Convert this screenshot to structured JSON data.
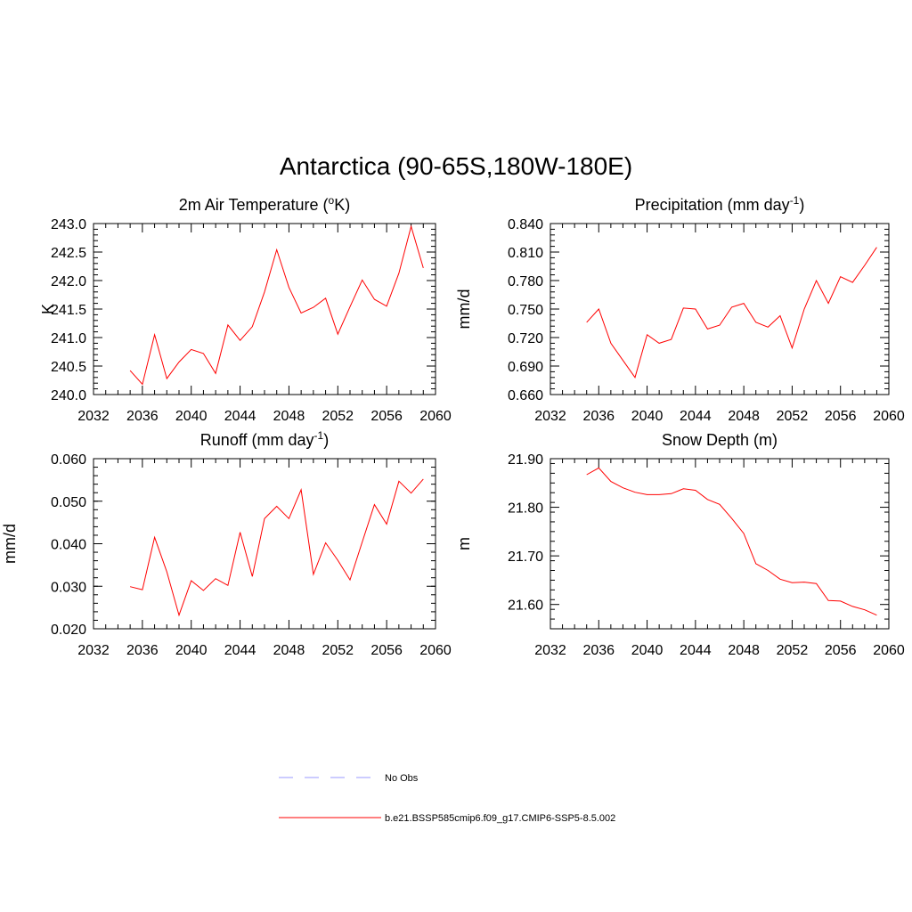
{
  "figure": {
    "title": "Antarctica (90-65S,180W-180E)"
  },
  "legend": {
    "entries": [
      {
        "label": "No Obs",
        "color": "#9999ff",
        "dash": true
      },
      {
        "label": "b.e21.BSSP585cmip6.f09_g17.CMIP6-SSP5-8.5.002",
        "color": "#ff0000",
        "dash": false
      }
    ]
  },
  "chart_data": [
    {
      "type": "line",
      "title": "2m Air Temperature (°K)",
      "title_main": "2m Air Temperature (",
      "title_sup": "o",
      "title_end": "K)",
      "ylabel": "K",
      "xlim": [
        2032,
        2060
      ],
      "ylim": [
        240.0,
        243.0
      ],
      "xticks": [
        "2032",
        "2036",
        "2040",
        "2044",
        "2048",
        "2052",
        "2056",
        "2060"
      ],
      "yticks": [
        "240.0",
        "240.5",
        "241.0",
        "241.5",
        "242.0",
        "242.5",
        "243.0"
      ],
      "grid": false,
      "series": [
        {
          "color": "#ff0000",
          "x": [
            2035,
            2036,
            2037,
            2038,
            2039,
            2040,
            2041,
            2042,
            2043,
            2044,
            2045,
            2046,
            2047,
            2048,
            2049,
            2050,
            2051,
            2052,
            2053,
            2054,
            2055,
            2056,
            2057,
            2058,
            2059
          ],
          "y": [
            240.42,
            240.18,
            241.05,
            240.28,
            240.57,
            240.79,
            240.72,
            240.37,
            241.22,
            240.95,
            241.19,
            241.8,
            242.54,
            241.88,
            241.43,
            241.53,
            241.69,
            241.06,
            241.54,
            242.01,
            241.67,
            241.55,
            242.13,
            242.95,
            242.22
          ]
        }
      ]
    },
    {
      "type": "line",
      "title": "Precipitation (mm day-1)",
      "title_main": "Precipitation (mm day",
      "title_sup": "-1",
      "title_end": ")",
      "ylabel": "mm/d",
      "xlim": [
        2032,
        2060
      ],
      "ylim": [
        0.66,
        0.84
      ],
      "xticks": [
        "2032",
        "2036",
        "2040",
        "2044",
        "2048",
        "2052",
        "2056",
        "2060"
      ],
      "yticks": [
        "0.660",
        "0.690",
        "0.720",
        "0.750",
        "0.780",
        "0.810",
        "0.840"
      ],
      "grid": false,
      "series": [
        {
          "color": "#ff0000",
          "x": [
            2035,
            2036,
            2037,
            2038,
            2039,
            2040,
            2041,
            2042,
            2043,
            2044,
            2045,
            2046,
            2047,
            2048,
            2049,
            2050,
            2051,
            2052,
            2053,
            2054,
            2055,
            2056,
            2057,
            2058,
            2059
          ],
          "y": [
            0.736,
            0.75,
            0.714,
            0.696,
            0.678,
            0.723,
            0.714,
            0.718,
            0.751,
            0.75,
            0.729,
            0.733,
            0.752,
            0.756,
            0.736,
            0.731,
            0.743,
            0.709,
            0.75,
            0.78,
            0.756,
            0.784,
            0.778,
            0.796,
            0.815
          ]
        }
      ]
    },
    {
      "type": "line",
      "title": "Runoff (mm day-1)",
      "title_main": "Runoff (mm day",
      "title_sup": "-1",
      "title_end": ")",
      "ylabel": "mm/d",
      "xlim": [
        2032,
        2060
      ],
      "ylim": [
        0.02,
        0.06
      ],
      "xticks": [
        "2032",
        "2036",
        "2040",
        "2044",
        "2048",
        "2052",
        "2056",
        "2060"
      ],
      "yticks": [
        "0.020",
        "0.030",
        "0.040",
        "0.050",
        "0.060"
      ],
      "grid": false,
      "series": [
        {
          "color": "#ff0000",
          "x": [
            2035,
            2036,
            2037,
            2038,
            2039,
            2040,
            2041,
            2042,
            2043,
            2044,
            2045,
            2046,
            2047,
            2048,
            2049,
            2050,
            2051,
            2052,
            2053,
            2054,
            2055,
            2056,
            2057,
            2058,
            2059
          ],
          "y": [
            0.0299,
            0.0292,
            0.0415,
            0.0334,
            0.0232,
            0.0313,
            0.029,
            0.0318,
            0.0302,
            0.0427,
            0.0323,
            0.0459,
            0.0488,
            0.0459,
            0.0527,
            0.0328,
            0.0402,
            0.0361,
            0.0315,
            0.0404,
            0.0492,
            0.0446,
            0.0547,
            0.0519,
            0.0552
          ]
        }
      ]
    },
    {
      "type": "line",
      "title": "Snow Depth (m)",
      "title_main": "Snow Depth (m)",
      "title_sup": "",
      "title_end": "",
      "ylabel": "m",
      "xlim": [
        2032,
        2060
      ],
      "ylim": [
        21.55,
        21.9
      ],
      "xticks": [
        "2032",
        "2036",
        "2040",
        "2044",
        "2048",
        "2052",
        "2056",
        "2060"
      ],
      "yticks": [
        "21.60",
        "21.70",
        "21.80",
        "21.90"
      ],
      "ytick_values": [
        21.6,
        21.7,
        21.8,
        21.9
      ],
      "grid": false,
      "series": [
        {
          "color": "#ff0000",
          "x": [
            2035,
            2036,
            2037,
            2038,
            2039,
            2040,
            2041,
            2042,
            2043,
            2044,
            2045,
            2046,
            2047,
            2048,
            2049,
            2050,
            2051,
            2052,
            2053,
            2054,
            2055,
            2056,
            2057,
            2058,
            2059
          ],
          "y": [
            21.867,
            21.881,
            21.853,
            21.84,
            21.831,
            21.826,
            21.826,
            21.828,
            21.838,
            21.835,
            21.816,
            21.806,
            21.777,
            21.746,
            21.684,
            21.67,
            21.652,
            21.645,
            21.646,
            21.643,
            21.608,
            21.607,
            21.596,
            21.589,
            21.578
          ]
        }
      ]
    }
  ]
}
